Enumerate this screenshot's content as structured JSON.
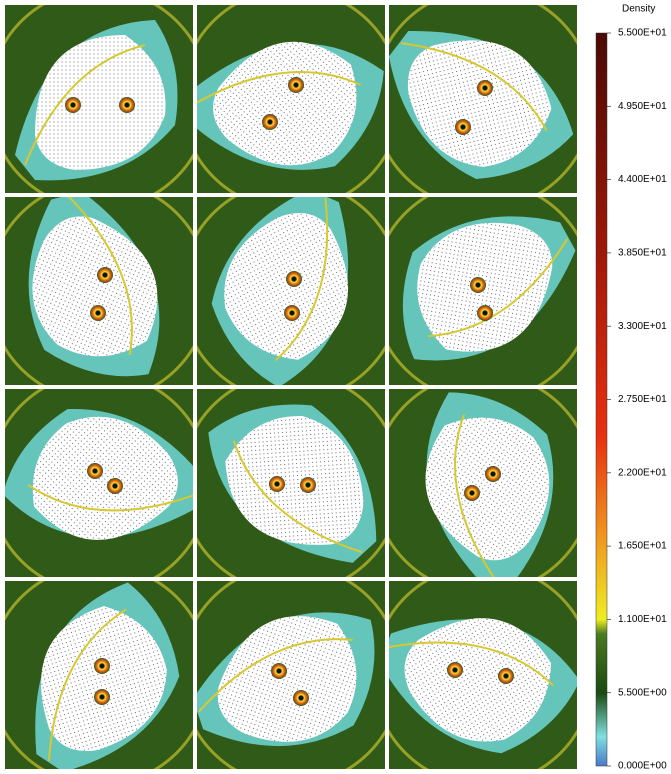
{
  "chart_data": {
    "type": "heatmap",
    "colorbar_title": "Density",
    "clim": [
      0,
      55
    ],
    "cticks": [
      {
        "value": 0,
        "label": "0.000E+00"
      },
      {
        "value": 5.5,
        "label": "5.500E+00"
      },
      {
        "value": 11,
        "label": "1.100E+01"
      },
      {
        "value": 16.5,
        "label": "1.650E+01"
      },
      {
        "value": 22,
        "label": "2.200E+01"
      },
      {
        "value": 27.5,
        "label": "2.750E+01"
      },
      {
        "value": 33,
        "label": "3.300E+01"
      },
      {
        "value": 38.5,
        "label": "3.850E+01"
      },
      {
        "value": 44,
        "label": "4.400E+01"
      },
      {
        "value": 49.5,
        "label": "4.950E+01"
      },
      {
        "value": 55,
        "label": "5.500E+01"
      }
    ]
  }
}
